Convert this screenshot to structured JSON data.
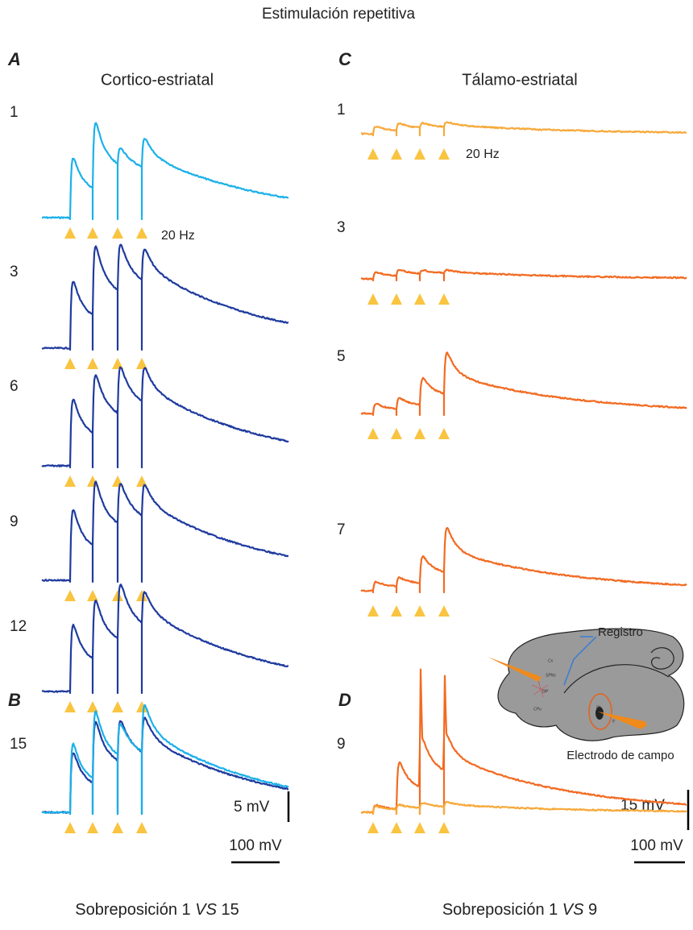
{
  "title": "Estimulación repetitiva",
  "panel_a": {
    "letter": "A",
    "title": "Cortico-estriatal",
    "rows": [
      "1",
      "3",
      "6",
      "9",
      "12"
    ],
    "frequency": "20 Hz"
  },
  "panel_b": {
    "letter": "B",
    "row": "15",
    "scale_y": "5 mV",
    "scale_x": "100 mV",
    "caption": [
      "Sobreposición 1 ",
      "VS",
      " 15"
    ]
  },
  "panel_c": {
    "letter": "C",
    "title": "Tálamo-estriatal",
    "rows": [
      "1",
      "3",
      "5",
      "7"
    ],
    "frequency": "20 Hz"
  },
  "panel_d": {
    "letter": "D",
    "row": "9",
    "scale_y": "15 mV",
    "scale_x": "100 mV",
    "caption": [
      "Sobreposición 1 ",
      "VS",
      " 9"
    ]
  },
  "inset": {
    "recording": "Registro",
    "electrode": "Electrodo de campo",
    "regions": [
      "Cx",
      "SPNs",
      "GP",
      "CPu",
      "Pf",
      "fr"
    ]
  }
}
